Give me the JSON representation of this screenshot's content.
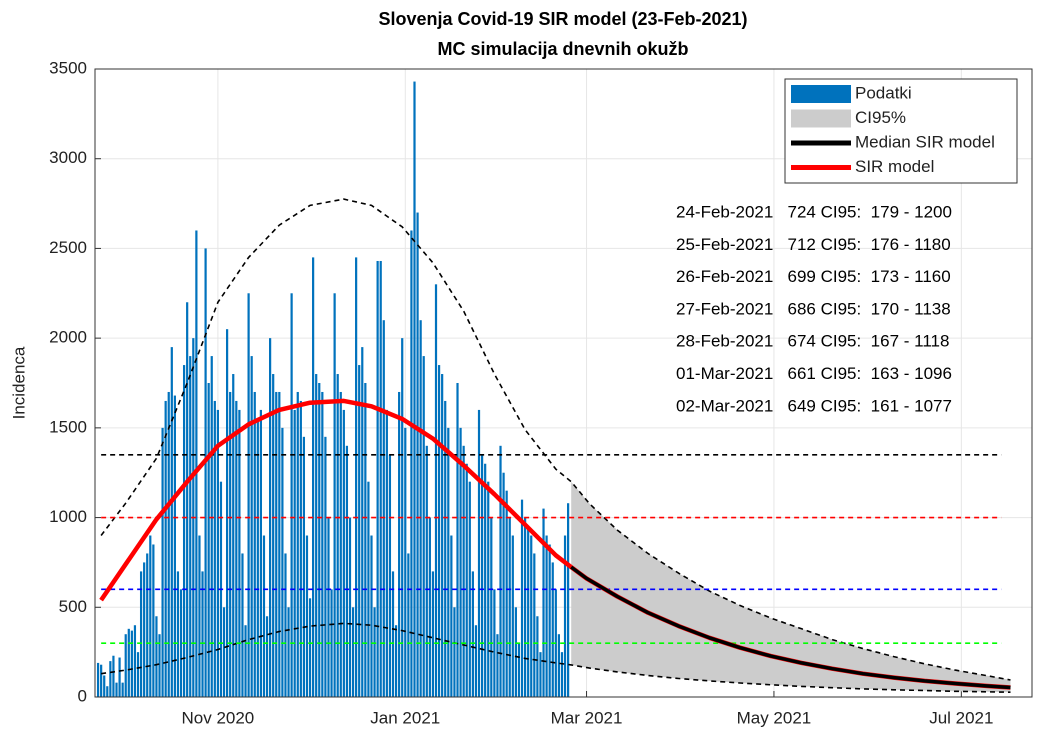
{
  "chart_data": {
    "type": "sir",
    "title": "Slovenja Covid-19 SIR model (23-Feb-2021)",
    "subtitle": "MC simulacija dnevnih okužb",
    "ylabel": "Incidenca",
    "xlim": [
      0,
      305
    ],
    "ylim": [
      0,
      3500
    ],
    "xticks": [
      {
        "value": 40,
        "label": "Nov 2020"
      },
      {
        "value": 101,
        "label": "Jan 2021"
      },
      {
        "value": 160,
        "label": "Mar 2021"
      },
      {
        "value": 221,
        "label": "May 2021"
      },
      {
        "value": 282,
        "label": "Jul 2021"
      }
    ],
    "yticks": [
      0,
      500,
      1000,
      1500,
      2000,
      2500,
      3000,
      3500
    ],
    "grid": true,
    "legend": "upper right",
    "series": [
      {
        "name": "Podatki",
        "type": "bar",
        "color": "#0072bd",
        "x": [
          1,
          2,
          3,
          4,
          5,
          6,
          7,
          8,
          9,
          10,
          11,
          12,
          13,
          14,
          15,
          16,
          17,
          18,
          19,
          20,
          21,
          22,
          23,
          24,
          25,
          26,
          27,
          28,
          29,
          30,
          31,
          32,
          33,
          34,
          35,
          36,
          37,
          38,
          39,
          40,
          41,
          42,
          43,
          44,
          45,
          46,
          47,
          48,
          49,
          50,
          51,
          52,
          53,
          54,
          55,
          56,
          57,
          58,
          59,
          60,
          61,
          62,
          63,
          64,
          65,
          66,
          67,
          68,
          69,
          70,
          71,
          72,
          73,
          74,
          75,
          76,
          77,
          78,
          79,
          80,
          81,
          82,
          83,
          84,
          85,
          86,
          87,
          88,
          89,
          90,
          91,
          92,
          93,
          94,
          95,
          96,
          97,
          98,
          99,
          100,
          101,
          102,
          103,
          104,
          105,
          106,
          107,
          108,
          109,
          110,
          111,
          112,
          113,
          114,
          115,
          116,
          117,
          118,
          119,
          120,
          121,
          122,
          123,
          124,
          125,
          126,
          127,
          128,
          129,
          130,
          131,
          132,
          133,
          134,
          135,
          136,
          137,
          138,
          139,
          140,
          141,
          142,
          143,
          144,
          145,
          146,
          147,
          148,
          149,
          150,
          151,
          152,
          153,
          154
        ],
        "values": [
          190,
          180,
          120,
          60,
          200,
          230,
          80,
          220,
          80,
          350,
          380,
          370,
          400,
          250,
          700,
          750,
          800,
          900,
          850,
          450,
          350,
          1500,
          1650,
          1700,
          1950,
          1680,
          700,
          600,
          1850,
          2200,
          1900,
          2000,
          2600,
          900,
          700,
          2500,
          1750,
          1900,
          1650,
          1600,
          1200,
          500,
          2050,
          1700,
          1800,
          1650,
          1600,
          800,
          400,
          2250,
          1900,
          1700,
          1550,
          1600,
          900,
          450,
          2000,
          1800,
          1700,
          1700,
          1500,
          800,
          500,
          2250,
          1600,
          1700,
          1650,
          1450,
          900,
          550,
          2450,
          1800,
          1750,
          1700,
          1450,
          1000,
          600,
          2250,
          1800,
          1700,
          1600,
          1400,
          1000,
          500,
          2450,
          1850,
          1950,
          1750,
          1200,
          900,
          500,
          2430,
          2430,
          2100,
          1600,
          1350,
          700,
          400,
          1700,
          2000,
          1500,
          800,
          2600,
          3430,
          2700,
          2100,
          1900,
          1400,
          1000,
          700,
          2300,
          1850,
          1800,
          1650,
          1500,
          900,
          500,
          1750,
          1500,
          1400,
          1300,
          1200,
          700,
          400,
          1600,
          1350,
          1300,
          1200,
          1000,
          600,
          350,
          1400,
          1250,
          1150,
          1000,
          900,
          500,
          300,
          1100,
          1000,
          950,
          900,
          800,
          450,
          250,
          1050,
          900,
          850,
          750,
          600,
          350,
          250,
          900,
          1080
        ]
      },
      {
        "name": "CI95%",
        "type": "area",
        "color": "#cccccc",
        "x": [
          155,
          161,
          170,
          180,
          190,
          200,
          210,
          220,
          230,
          240,
          250,
          260,
          270,
          280,
          290,
          298
        ],
        "upper": [
          1200,
          1077,
          930,
          800,
          690,
          590,
          510,
          440,
          380,
          320,
          270,
          225,
          185,
          150,
          120,
          95
        ],
        "lower": [
          179,
          161,
          140,
          120,
          103,
          90,
          78,
          68,
          59,
          52,
          45,
          40,
          36,
          32,
          29,
          27
        ]
      },
      {
        "name": "Median SIR model",
        "type": "line",
        "color": "#000000",
        "x": [
          155,
          160,
          170,
          180,
          190,
          200,
          210,
          220,
          230,
          240,
          250,
          260,
          270,
          280,
          290,
          298
        ],
        "values": [
          724,
          661,
          560,
          470,
          395,
          330,
          275,
          228,
          190,
          158,
          130,
          108,
          90,
          75,
          62,
          53
        ]
      },
      {
        "name": "SIR model",
        "type": "line",
        "color": "#ff0000",
        "x": [
          2,
          10,
          20,
          30,
          40,
          50,
          60,
          70,
          81,
          90,
          100,
          110,
          120,
          130,
          140,
          150,
          155,
          160,
          170,
          180,
          190,
          200,
          210,
          220,
          230,
          240,
          250,
          260,
          270,
          280,
          290,
          298
        ],
        "values": [
          540,
          740,
          990,
          1200,
          1400,
          1520,
          1600,
          1640,
          1650,
          1620,
          1550,
          1440,
          1290,
          1130,
          960,
          790,
          724,
          661,
          560,
          470,
          395,
          330,
          275,
          228,
          190,
          158,
          130,
          108,
          90,
          75,
          62,
          53
        ]
      },
      {
        "type": "dashed",
        "color": "#000000",
        "x": [
          2,
          10,
          20,
          30,
          40,
          50,
          60,
          70,
          81,
          90,
          100,
          110,
          120,
          130,
          140,
          150,
          155,
          161,
          170,
          180,
          190,
          200,
          210,
          220,
          230,
          240,
          250,
          260,
          270,
          280,
          290,
          298
        ],
        "values": [
          900,
          1080,
          1330,
          1750,
          2200,
          2450,
          2630,
          2740,
          2775,
          2740,
          2620,
          2420,
          2150,
          1800,
          1490,
          1270,
          1200,
          1077,
          930,
          800,
          690,
          590,
          510,
          440,
          380,
          320,
          270,
          225,
          185,
          150,
          120,
          95
        ]
      },
      {
        "type": "dashed",
        "color": "#000000",
        "x": [
          2,
          10,
          20,
          30,
          40,
          50,
          60,
          70,
          81,
          90,
          100,
          110,
          120,
          130,
          140,
          150,
          155,
          161,
          170,
          180,
          190,
          200,
          210,
          220,
          230,
          240,
          250,
          260,
          270,
          280,
          290,
          298
        ],
        "values": [
          130,
          150,
          180,
          220,
          265,
          320,
          365,
          395,
          410,
          400,
          370,
          330,
          290,
          250,
          215,
          190,
          179,
          161,
          140,
          120,
          103,
          90,
          78,
          68,
          59,
          52,
          45,
          40,
          36,
          32,
          29,
          27
        ]
      }
    ],
    "hlines": [
      {
        "value": 1350,
        "color": "#000000"
      },
      {
        "value": 1000,
        "color": "#ff0000"
      },
      {
        "value": 600,
        "color": "#0000ff"
      },
      {
        "value": 300,
        "color": "#00ff00"
      }
    ],
    "hline_x": [
      2,
      295
    ],
    "annotations": [
      "24-Feb-2021   724 CI95:  179 - 1200",
      "25-Feb-2021   712 CI95:  176 - 1180",
      "26-Feb-2021   699 CI95:  173 - 1160",
      "27-Feb-2021   686 CI95:  170 - 1138",
      "28-Feb-2021   674 CI95:  167 - 1118",
      "01-Mar-2021   661 CI95:  163 - 1096",
      "02-Mar-2021   649 CI95:  161 - 1077"
    ]
  }
}
